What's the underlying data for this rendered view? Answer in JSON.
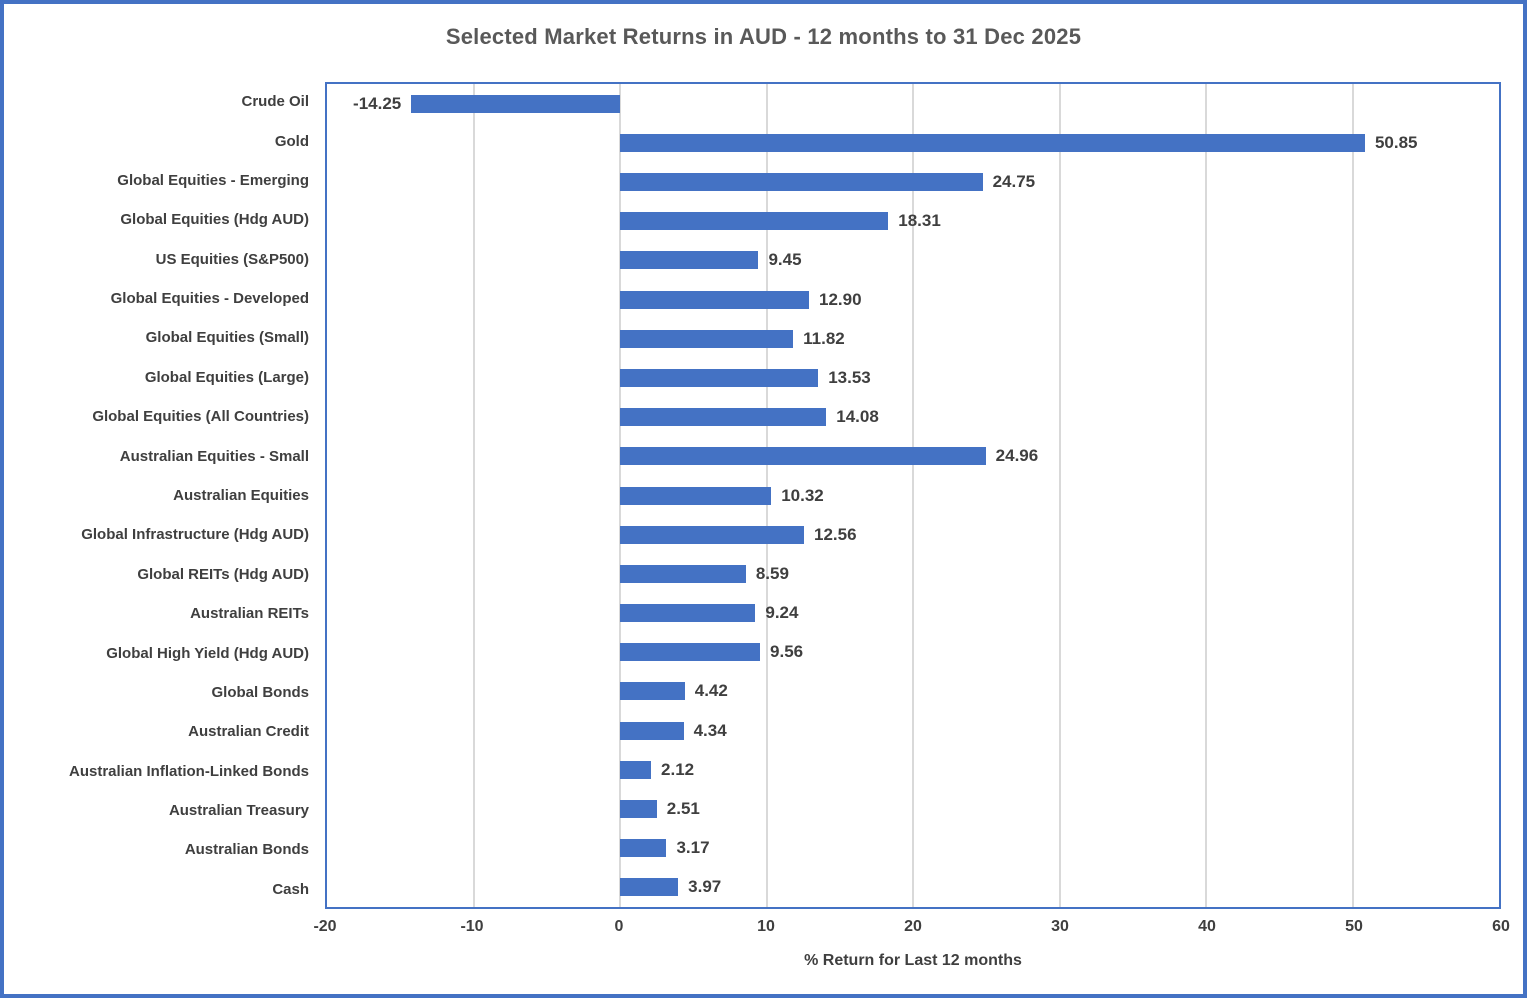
{
  "chart_data": {
    "type": "bar",
    "orientation": "horizontal",
    "title": "Selected Market Returns in AUD - 12 months to 31 Dec 2025",
    "xlabel": "% Return for Last 12 months",
    "xlim": [
      -20,
      60
    ],
    "xticks": [
      -20,
      -10,
      0,
      10,
      20,
      30,
      40,
      50,
      60
    ],
    "grid": "vertical-gridlines-on",
    "legend": "none",
    "categories": [
      "Crude Oil",
      "Gold",
      "Global Equities - Emerging",
      "Global Equities (Hdg AUD)",
      "US Equities (S&P500)",
      "Global Equities - Developed",
      "Global Equities (Small)",
      "Global Equities (Large)",
      "Global Equities (All Countries)",
      "Australian Equities - Small",
      "Australian Equities",
      "Global Infrastructure (Hdg AUD)",
      "Global REITs (Hdg AUD)",
      "Australian REITs",
      "Global High Yield (Hdg AUD)",
      "Global Bonds",
      "Australian Credit",
      "Australian Inflation-Linked Bonds",
      "Australian Treasury",
      "Australian Bonds",
      "Cash"
    ],
    "values": [
      -14.25,
      50.85,
      24.75,
      18.31,
      9.45,
      12.9,
      11.82,
      13.53,
      14.08,
      24.96,
      10.32,
      12.56,
      8.59,
      9.24,
      9.56,
      4.42,
      4.34,
      2.12,
      2.51,
      3.17,
      3.97
    ],
    "value_labels": [
      "-14.25",
      "50.85",
      "24.75",
      "18.31",
      "9.45",
      "12.90",
      "11.82",
      "13.53",
      "14.08",
      "24.96",
      "10.32",
      "12.56",
      "8.59",
      "9.24",
      "9.56",
      "4.42",
      "4.34",
      "2.12",
      "2.51",
      "3.17",
      "3.97"
    ],
    "colors": {
      "bar": "#4472C4",
      "plot_border": "#4472C4",
      "outer_border": "#4472C4",
      "gridline": "#D9D9D9",
      "title_text": "#595959",
      "label_text": "#3F3F3F"
    }
  }
}
